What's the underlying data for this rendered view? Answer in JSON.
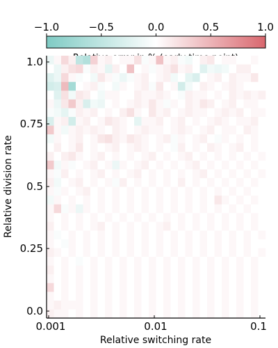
{
  "chart_data": {
    "type": "heatmap",
    "title": "",
    "xlabel": "Relative switching rate",
    "ylabel": "Relative division rate",
    "x_scale": "log",
    "xlim": [
      0.001,
      0.1
    ],
    "ylim": [
      0.0,
      1.0
    ],
    "x_tick_labels": [
      "0.001",
      "0.01",
      "0.1"
    ],
    "y_tick_labels": [
      "0.0",
      "0.25",
      "0.5",
      "0.75",
      "1.0"
    ],
    "grid": false,
    "colorbar": {
      "title": "Relative error in % (early time point)",
      "range": [
        -1.0,
        1.0
      ],
      "tick_labels": [
        "−1.0",
        "−0.5",
        "0.0",
        "0.5",
        "1.0"
      ],
      "colors": {
        "negative": "#7fcbc4",
        "zero": "#ffffff",
        "positive": "#d9676e"
      },
      "placement": "top"
    },
    "rows_top_to_bottom": [
      [
        -0.15,
        0.05,
        0.25,
        0.1,
        -0.5,
        -0.6,
        0.3,
        0.05,
        0.1,
        0.0,
        0.05,
        0.05,
        0.2,
        -0.05,
        0.05,
        0.4,
        0.05,
        0.1,
        -0.05,
        -0.1,
        0.0,
        0.1,
        0.15,
        0.0,
        0.05,
        0.05,
        0.0,
        0.0,
        0.05,
        0.0
      ],
      [
        0.0,
        -0.15,
        0.1,
        0.2,
        0.25,
        -0.05,
        0.1,
        0.05,
        -0.2,
        0.1,
        0.0,
        0.4,
        0.0,
        0.05,
        -0.05,
        0.05,
        0.1,
        0.2,
        0.05,
        0.1,
        0.0,
        -0.25,
        -0.1,
        -0.15,
        -0.1,
        0.0,
        0.1,
        0.1,
        0.0,
        0.0
      ],
      [
        -0.25,
        -0.15,
        0.25,
        0.05,
        -0.05,
        0.0,
        -0.1,
        0.15,
        0.05,
        -0.05,
        -0.15,
        -0.05,
        0.05,
        0.1,
        0.0,
        0.05,
        0.1,
        -0.1,
        0.0,
        -0.2,
        -0.3,
        0.0,
        0.05,
        0.1,
        0.0,
        0.1,
        0.05,
        0.05,
        0.15,
        0.0
      ],
      [
        -0.35,
        -0.3,
        0.45,
        -0.7,
        0.0,
        0.05,
        0.1,
        -0.05,
        0.0,
        -0.1,
        0.05,
        0.0,
        0.05,
        0.1,
        -0.05,
        0.15,
        0.0,
        0.05,
        -0.35,
        -0.1,
        0.0,
        0.1,
        0.05,
        0.0,
        0.05,
        0.1,
        0.05,
        0.0,
        0.0,
        0.0
      ],
      [
        0.0,
        -0.25,
        0.2,
        -0.1,
        0.15,
        0.1,
        0.0,
        -0.1,
        0.05,
        0.05,
        0.0,
        0.0,
        0.1,
        0.05,
        0.05,
        0.1,
        0.05,
        0.0,
        -0.05,
        0.1,
        0.05,
        0.05,
        0.0,
        0.05,
        0.0,
        0.1,
        0.05,
        0.1,
        0.05,
        0.1
      ],
      [
        0.05,
        -0.15,
        0.15,
        0.35,
        0.1,
        -0.3,
        -0.1,
        -0.15,
        0.0,
        0.05,
        0.0,
        0.05,
        0.1,
        0.05,
        0.15,
        0.05,
        -0.05,
        0.05,
        0.0,
        0.1,
        0.05,
        0.15,
        0.1,
        0.0,
        0.05,
        0.1,
        0.0,
        0.05,
        0.05,
        0.0
      ],
      [
        -0.05,
        -0.1,
        -0.2,
        -0.05,
        0.1,
        0.05,
        0.1,
        0.0,
        0.05,
        0.0,
        0.1,
        0.2,
        0.05,
        0.0,
        0.15,
        0.05,
        0.1,
        0.0,
        0.05,
        0.1,
        0.05,
        0.05,
        0.0,
        0.05,
        0.1,
        0.05,
        0.1,
        0.0,
        0.05,
        0.05
      ],
      [
        -0.3,
        0.05,
        0.1,
        -0.35,
        0.05,
        0.1,
        0.0,
        0.05,
        0.15,
        0.1,
        0.05,
        0.0,
        -0.2,
        0.05,
        0.05,
        0.1,
        0.0,
        0.05,
        0.1,
        0.0,
        0.05,
        0.0,
        0.05,
        0.1,
        0.05,
        0.0,
        0.05,
        0.05,
        0.1,
        0.0
      ],
      [
        0.35,
        0.05,
        -0.1,
        0.05,
        0.1,
        0.05,
        0.1,
        0.05,
        0.0,
        0.1,
        0.05,
        0.0,
        0.05,
        0.1,
        0.05,
        0.05,
        0.0,
        0.05,
        0.1,
        0.05,
        0.0,
        0.05,
        0.1,
        0.0,
        0.05,
        0.05,
        0.0,
        0.1,
        0.05,
        0.0
      ],
      [
        -0.1,
        0.05,
        0.0,
        0.05,
        0.1,
        0.0,
        0.05,
        0.15,
        0.2,
        0.1,
        0.05,
        0.15,
        0.1,
        0.05,
        0.0,
        0.05,
        0.1,
        -0.05,
        0.05,
        0.0,
        0.05,
        0.1,
        0.0,
        -0.05,
        0.05,
        0.0,
        0.05,
        0.0,
        0.05,
        0.0
      ],
      [
        0.0,
        0.1,
        0.0,
        0.05,
        0.15,
        0.0,
        0.05,
        0.0,
        0.05,
        0.1,
        0.0,
        0.05,
        0.1,
        0.05,
        0.0,
        0.05,
        0.0,
        -0.05,
        0.1,
        0.0,
        0.05,
        0.0,
        0.1,
        0.05,
        0.0,
        0.05,
        0.1,
        0.0,
        0.05,
        0.0
      ],
      [
        0.1,
        0.0,
        0.1,
        0.15,
        0.05,
        0.0,
        0.05,
        0.1,
        0.0,
        0.05,
        0.0,
        0.05,
        0.0,
        0.05,
        0.1,
        0.0,
        0.05,
        0.0,
        0.05,
        0.1,
        0.0,
        0.05,
        0.0,
        0.05,
        0.0,
        0.05,
        0.0,
        0.05,
        0.0,
        0.05
      ],
      [
        0.35,
        -0.1,
        0.05,
        -0.05,
        0.0,
        0.05,
        0.1,
        0.0,
        0.05,
        -0.15,
        0.05,
        0.0,
        0.05,
        0.1,
        0.0,
        0.05,
        0.0,
        0.05,
        0.0,
        0.05,
        0.1,
        0.0,
        0.05,
        0.0,
        0.05,
        0.0,
        0.05,
        0.0,
        0.05,
        0.0
      ],
      [
        0.05,
        -0.05,
        0.1,
        0.0,
        0.05,
        0.0,
        0.05,
        0.1,
        0.0,
        0.05,
        0.0,
        0.05,
        0.1,
        0.0,
        0.05,
        0.0,
        0.05,
        0.0,
        0.05,
        0.0,
        0.05,
        0.1,
        0.0,
        0.05,
        0.0,
        0.05,
        0.0,
        0.05,
        0.0,
        0.05
      ],
      [
        0.1,
        -0.1,
        0.0,
        0.05,
        0.1,
        0.0,
        0.05,
        0.0,
        0.05,
        -0.05,
        0.1,
        0.0,
        0.05,
        0.0,
        0.05,
        0.0,
        0.05,
        0.0,
        0.1,
        0.0,
        0.05,
        0.0,
        0.05,
        0.0,
        0.05,
        0.0,
        0.05,
        0.0,
        0.05,
        0.0
      ],
      [
        0.05,
        -0.05,
        0.05,
        0.0,
        0.05,
        0.1,
        0.0,
        0.05,
        0.0,
        0.05,
        0.0,
        0.05,
        0.0,
        0.05,
        0.0,
        0.05,
        0.0,
        0.05,
        0.0,
        0.05,
        0.0,
        0.05,
        0.0,
        0.05,
        0.0,
        0.05,
        0.0,
        0.05,
        0.0,
        0.0
      ],
      [
        -0.1,
        0.05,
        0.0,
        0.05,
        0.0,
        0.05,
        0.0,
        0.05,
        0.0,
        0.05,
        0.0,
        0.05,
        0.0,
        0.05,
        0.0,
        0.05,
        0.0,
        0.05,
        0.0,
        0.05,
        0.0,
        0.05,
        0.0,
        0.15,
        0.05,
        0.0,
        0.05,
        0.0,
        0.05,
        0.0
      ],
      [
        0.05,
        0.25,
        -0.05,
        0.05,
        -0.15,
        0.05,
        0.0,
        0.05,
        0.0,
        0.05,
        0.0,
        0.05,
        0.0,
        0.05,
        0.0,
        0.05,
        0.0,
        0.05,
        0.0,
        0.05,
        0.0,
        0.05,
        0.0,
        0.05,
        0.0,
        0.05,
        0.0,
        0.05,
        0.0,
        0.0
      ],
      [
        0.05,
        0.0,
        0.05,
        0.0,
        0.05,
        0.0,
        0.05,
        0.0,
        0.05,
        0.0,
        0.05,
        0.0,
        0.05,
        0.0,
        0.05,
        0.0,
        0.05,
        0.0,
        0.05,
        0.0,
        0.05,
        0.0,
        0.05,
        0.0,
        0.05,
        0.0,
        0.05,
        0.0,
        0.05,
        0.0
      ],
      [
        0.1,
        0.0,
        0.05,
        0.0,
        0.05,
        0.0,
        0.05,
        0.1,
        0.0,
        0.05,
        0.0,
        0.05,
        0.0,
        0.05,
        0.0,
        0.05,
        0.1,
        0.0,
        0.05,
        0.0,
        0.05,
        0.0,
        0.05,
        0.0,
        0.05,
        0.0,
        0.05,
        0.0,
        0.05,
        0.0
      ],
      [
        0.05,
        -0.05,
        0.0,
        0.05,
        0.0,
        0.05,
        0.0,
        0.05,
        0.0,
        0.05,
        0.0,
        0.05,
        0.0,
        0.05,
        0.0,
        0.05,
        0.0,
        0.05,
        0.0,
        0.05,
        0.0,
        0.05,
        0.0,
        0.05,
        0.0,
        0.05,
        0.0,
        0.05,
        0.0,
        0.05
      ],
      [
        0.05,
        0.0,
        -0.05,
        0.05,
        0.0,
        0.05,
        0.0,
        0.05,
        0.0,
        0.05,
        0.0,
        0.05,
        0.0,
        0.05,
        0.0,
        0.05,
        0.0,
        0.05,
        0.0,
        0.05,
        0.0,
        0.05,
        0.0,
        0.05,
        0.0,
        0.05,
        0.0,
        0.05,
        0.0,
        0.0
      ],
      [
        0.1,
        0.05,
        0.0,
        0.05,
        0.0,
        0.05,
        0.0,
        0.05,
        0.0,
        0.05,
        0.0,
        0.05,
        0.0,
        0.05,
        0.0,
        0.05,
        0.0,
        0.05,
        0.0,
        0.05,
        0.0,
        0.05,
        0.0,
        0.05,
        0.0,
        0.05,
        0.0,
        0.05,
        0.0,
        0.05
      ],
      [
        0.05,
        0.0,
        0.05,
        0.0,
        -0.05,
        0.0,
        0.05,
        0.0,
        0.05,
        0.0,
        0.05,
        0.0,
        0.05,
        0.0,
        0.05,
        0.0,
        0.05,
        0.0,
        0.05,
        0.0,
        0.05,
        0.0,
        0.05,
        0.0,
        0.05,
        0.0,
        0.05,
        0.0,
        0.05,
        0.0
      ],
      [
        0.1,
        0.0,
        0.05,
        0.0,
        0.05,
        0.0,
        0.05,
        0.0,
        0.05,
        0.0,
        0.05,
        0.0,
        0.05,
        0.0,
        0.05,
        0.0,
        0.05,
        0.0,
        0.05,
        0.0,
        0.05,
        0.0,
        0.05,
        0.0,
        0.05,
        0.0,
        0.05,
        0.0,
        0.05,
        0.0
      ],
      [
        0.05,
        0.0,
        0.05,
        0.0,
        0.05,
        0.0,
        0.05,
        0.0,
        0.05,
        0.0,
        0.05,
        0.0,
        0.05,
        0.0,
        0.05,
        0.0,
        0.05,
        0.0,
        0.05,
        0.0,
        0.05,
        0.0,
        0.05,
        0.0,
        0.05,
        0.0,
        0.05,
        0.0,
        0.05,
        0.0
      ],
      [
        0.25,
        0.0,
        0.05,
        0.0,
        0.05,
        0.0,
        0.05,
        0.0,
        0.05,
        0.0,
        0.05,
        0.0,
        0.05,
        0.0,
        0.05,
        0.0,
        0.05,
        0.0,
        0.05,
        0.0,
        0.05,
        0.0,
        0.05,
        0.0,
        0.05,
        0.0,
        0.05,
        0.0,
        0.05,
        0.0
      ],
      [
        0.05,
        0.0,
        0.05,
        0.0,
        0.05,
        0.0,
        0.05,
        0.0,
        0.05,
        0.0,
        0.05,
        0.0,
        0.05,
        0.0,
        0.05,
        0.0,
        0.05,
        0.0,
        0.05,
        0.0,
        0.05,
        0.0,
        0.05,
        0.0,
        0.05,
        0.0,
        0.05,
        0.0,
        0.05,
        0.0
      ],
      [
        0.05,
        0.1,
        0.05,
        0.05,
        0.05,
        0.0,
        0.05,
        0.0,
        0.05,
        0.0,
        0.05,
        0.0,
        0.05,
        0.0,
        0.05,
        0.0,
        0.05,
        0.0,
        0.05,
        0.0,
        0.05,
        0.0,
        0.05,
        0.0,
        0.05,
        0.0,
        0.05,
        0.0,
        0.05,
        0.0
      ],
      [
        0.1,
        0.05,
        0.05,
        0.0,
        0.05,
        0.0,
        0.05,
        0.0,
        0.05,
        0.0,
        0.05,
        0.0,
        0.05,
        0.0,
        0.05,
        0.0,
        0.05,
        0.0,
        0.05,
        0.0,
        0.05,
        0.0,
        0.05,
        0.0,
        0.05,
        0.0,
        0.05,
        0.0,
        0.05,
        0.0
      ]
    ]
  }
}
